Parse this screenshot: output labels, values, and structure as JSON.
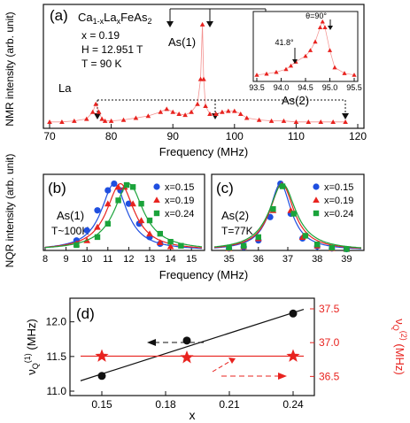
{
  "colors": {
    "red": "#e8231f",
    "blue": "#1f4fe0",
    "green": "#1aa33a",
    "black": "#111111"
  },
  "panel_a": {
    "label": "(a)",
    "info": [
      "x = 0.19",
      "H = 12.951 T",
      "T = 90 K"
    ],
    "composition": {
      "base": "Ca",
      "sub1": "1-x",
      "mid": "La",
      "sub2": "x",
      "tail": "FeAs",
      "sub3": "2"
    },
    "annotations": {
      "la": "La",
      "as1": "As(1)",
      "as2": "As(2)"
    },
    "xlabel": "Frequency (MHz)",
    "ylabel": "NMR intensity (arb. unit)",
    "xticks": [
      "70",
      "80",
      "90",
      "100",
      "110",
      "120"
    ],
    "inset": {
      "xticks": [
        "93.5",
        "94.0",
        "94.5",
        "95.0",
        "95.5"
      ],
      "label_peak": "θ=90°",
      "label_shoulder": "41.8°"
    }
  },
  "panel_b": {
    "label": "(b)",
    "title": "As(1)",
    "temp": "T~100K",
    "xticks": [
      "8",
      "9",
      "10",
      "11",
      "12",
      "13",
      "14",
      "15"
    ],
    "legend": [
      "x=0.15",
      "x=0.19",
      "x=0.24"
    ]
  },
  "panel_c": {
    "label": "(c)",
    "title": "As(2)",
    "temp": "T=77K",
    "xticks": [
      "35",
      "36",
      "37",
      "38",
      "39"
    ],
    "legend": [
      "x=0.15",
      "x=0.19",
      "x=0.24"
    ]
  },
  "bc_ylabel": "NQR intensity (arb. unit)",
  "bc_xlabel": "Frequency (MHz)",
  "panel_d": {
    "label": "(d)",
    "xlabel": "x",
    "ylabel_left": "ν",
    "ylabel_left_sub": "Q",
    "ylabel_left_sup": "(1)",
    "ylabel_left_unit": " (MHz)",
    "ylabel_right": "ν",
    "ylabel_right_sub": "Q",
    "ylabel_right_sup": "(2)",
    "ylabel_right_unit": " (MHz)",
    "xticks": [
      "0.15",
      "0.18",
      "0.21",
      "0.24"
    ],
    "yticks_left": [
      "11.0",
      "11.5",
      "12.0"
    ],
    "yticks_right": [
      "36.5",
      "37.0",
      "37.5"
    ]
  },
  "chart_data": [
    {
      "type": "scatter",
      "panel": "a",
      "title": "",
      "xlabel": "Frequency (MHz)",
      "ylabel": "NMR intensity (arb. unit)",
      "xlim": [
        70,
        120
      ],
      "ylim": [
        0,
        1.05
      ],
      "series": [
        {
          "values": "NMR spectrum (sampled)",
          "x": [
            70,
            72,
            74,
            76,
            77,
            77.5,
            78,
            78.5,
            79,
            80,
            82,
            84,
            86,
            88,
            89,
            90,
            91,
            92,
            93,
            94,
            94.5,
            94.8,
            95,
            95.3,
            96,
            97,
            98,
            99,
            100,
            101,
            102,
            104,
            106,
            108,
            110,
            112,
            114,
            116,
            118
          ],
          "y": [
            0.02,
            0.02,
            0.03,
            0.05,
            0.12,
            0.2,
            0.12,
            0.05,
            0.03,
            0.03,
            0.04,
            0.06,
            0.08,
            0.12,
            0.15,
            0.12,
            0.1,
            0.09,
            0.12,
            0.2,
            0.45,
            1.0,
            0.45,
            0.18,
            0.1,
            0.1,
            0.12,
            0.13,
            0.13,
            0.1,
            0.06,
            0.04,
            0.03,
            0.03,
            0.02,
            0.02,
            0.02,
            0.02,
            0.02
          ]
        }
      ]
    },
    {
      "type": "line",
      "panel": "a-inset",
      "xlim": [
        93.5,
        95.5
      ],
      "series": [
        {
          "x": [
            93.5,
            93.7,
            93.9,
            94.1,
            94.2,
            94.3,
            94.5,
            94.6,
            94.7,
            94.8,
            94.85,
            94.9,
            95.0,
            95.1,
            95.3,
            95.5
          ],
          "y": [
            0.02,
            0.04,
            0.07,
            0.12,
            0.18,
            0.25,
            0.35,
            0.45,
            0.6,
            0.85,
            0.95,
            0.85,
            0.45,
            0.15,
            0.05,
            0.02
          ]
        }
      ]
    },
    {
      "type": "line",
      "panel": "b",
      "xlabel": "Frequency (MHz)",
      "ylabel": "NQR intensity (arb. unit)",
      "xlim": [
        8,
        15.5
      ],
      "ylim": [
        0,
        1.1
      ],
      "series": [
        {
          "name": "x=0.15",
          "center": 11.3,
          "width": 0.75,
          "x": [
            9.5,
            10,
            10.5,
            11,
            11.3,
            11.6,
            12,
            12.5,
            13,
            13.5
          ],
          "y": [
            0.15,
            0.3,
            0.6,
            0.9,
            1.0,
            0.9,
            0.7,
            0.4,
            0.2,
            0.1
          ]
        },
        {
          "name": "x=0.19",
          "center": 11.6,
          "width": 0.8,
          "x": [
            9.5,
            10,
            10.5,
            11,
            11.5,
            11.8,
            12.2,
            12.6,
            13,
            13.5,
            14
          ],
          "y": [
            0.1,
            0.15,
            0.35,
            0.7,
            0.95,
            0.95,
            0.7,
            0.45,
            0.25,
            0.12,
            0.06
          ]
        },
        {
          "name": "x=0.24",
          "center": 12.0,
          "width": 0.85,
          "x": [
            9.5,
            10.5,
            11,
            11.5,
            11.9,
            12.2,
            12.6,
            13,
            13.5,
            14,
            14.5
          ],
          "y": [
            0.08,
            0.2,
            0.4,
            0.75,
            0.98,
            0.95,
            0.7,
            0.45,
            0.25,
            0.13,
            0.07
          ]
        }
      ]
    },
    {
      "type": "line",
      "panel": "c",
      "xlim": [
        34.5,
        39.5
      ],
      "ylim": [
        0,
        1.1
      ],
      "series": [
        {
          "name": "x=0.15",
          "center": 36.75,
          "width": 0.45,
          "x": [
            35,
            35.5,
            36,
            36.4,
            36.75,
            37.1,
            37.5,
            38,
            38.5,
            39
          ],
          "y": [
            0.03,
            0.05,
            0.15,
            0.5,
            1.0,
            0.55,
            0.18,
            0.06,
            0.03,
            0.02
          ]
        },
        {
          "name": "x=0.19",
          "center": 36.8,
          "width": 0.5,
          "x": [
            35,
            35.5,
            36,
            36.5,
            36.8,
            37.1,
            37.5,
            38,
            38.5,
            39
          ],
          "y": [
            0.03,
            0.06,
            0.18,
            0.6,
            0.98,
            0.6,
            0.2,
            0.07,
            0.03,
            0.02
          ]
        },
        {
          "name": "x=0.24",
          "center": 36.82,
          "width": 0.55,
          "x": [
            35,
            35.5,
            36,
            36.5,
            36.82,
            37.2,
            37.6,
            38,
            38.5,
            39
          ],
          "y": [
            0.04,
            0.07,
            0.2,
            0.62,
            0.96,
            0.55,
            0.22,
            0.09,
            0.04,
            0.02
          ]
        }
      ]
    },
    {
      "type": "scatter",
      "panel": "d",
      "xlabel": "x",
      "xlim": [
        0.135,
        0.25
      ],
      "ylim_left": [
        11.0,
        12.2
      ],
      "ylim_right": [
        36.4,
        37.5
      ],
      "series": [
        {
          "axis": "left",
          "marker": "circle",
          "color": "#111111",
          "x": [
            0.15,
            0.19,
            0.24
          ],
          "y": [
            11.22,
            11.73,
            12.12
          ]
        },
        {
          "axis": "right",
          "marker": "star",
          "color": "#e8231f",
          "x": [
            0.15,
            0.19,
            0.24
          ],
          "y": [
            36.8,
            36.78,
            36.8
          ]
        }
      ],
      "fits": [
        {
          "axis": "left",
          "x": [
            0.14,
            0.245
          ],
          "y": [
            11.15,
            12.18
          ]
        },
        {
          "axis": "right",
          "x": [
            0.14,
            0.245
          ],
          "y": [
            36.8,
            36.8
          ]
        }
      ]
    }
  ]
}
